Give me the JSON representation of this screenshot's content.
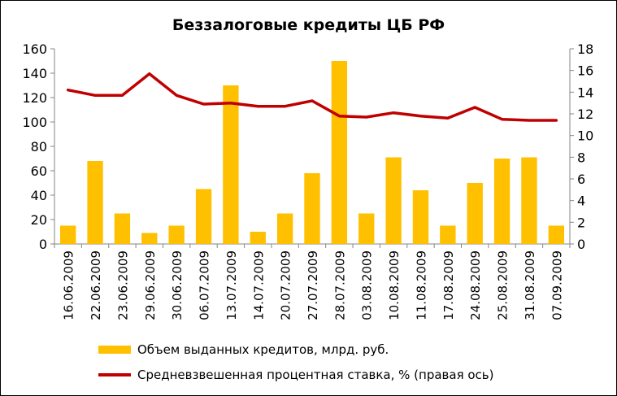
{
  "chart_data": {
    "type": "bar",
    "title": "Беззалоговые кредиты ЦБ РФ",
    "categories": [
      "16.06.2009",
      "22.06.2009",
      "23.06.2009",
      "29.06.2009",
      "30.06.2009",
      "06.07.2009",
      "13.07.2009",
      "14.07.2009",
      "20.07.2009",
      "27.07.2009",
      "28.07.2009",
      "03.08.2009",
      "10.08.2009",
      "11.08.2009",
      "17.08.2009",
      "24.08.2009",
      "25.08.2009",
      "31.08.2009",
      "07.09.2009"
    ],
    "series": [
      {
        "name": "Объем выданных кредитов, млрд. руб.",
        "type": "bar",
        "axis": "left",
        "color": "#FFC000",
        "values": [
          15,
          68,
          25,
          9,
          15,
          45,
          130,
          10,
          25,
          58,
          150,
          25,
          71,
          44,
          15,
          50,
          70,
          71,
          15
        ]
      },
      {
        "name": "Средневзвешенная процентная ставка, % (правая ось)",
        "type": "line",
        "axis": "right",
        "color": "#C00000",
        "values": [
          14.2,
          13.7,
          13.7,
          15.7,
          13.7,
          12.9,
          13.0,
          12.7,
          12.7,
          13.2,
          11.8,
          11.7,
          12.1,
          11.8,
          11.6,
          12.6,
          11.5,
          11.4,
          11.4
        ]
      }
    ],
    "y_left": {
      "min": 0,
      "max": 160,
      "ticks": [
        "0",
        "20",
        "40",
        "60",
        "80",
        "100",
        "120",
        "140",
        "160"
      ]
    },
    "y_right": {
      "min": 0,
      "max": 18,
      "ticks": [
        "0",
        "2",
        "4",
        "6",
        "8",
        "10",
        "12",
        "14",
        "16",
        "18"
      ]
    },
    "grid": false,
    "legend_position": "bottom"
  }
}
